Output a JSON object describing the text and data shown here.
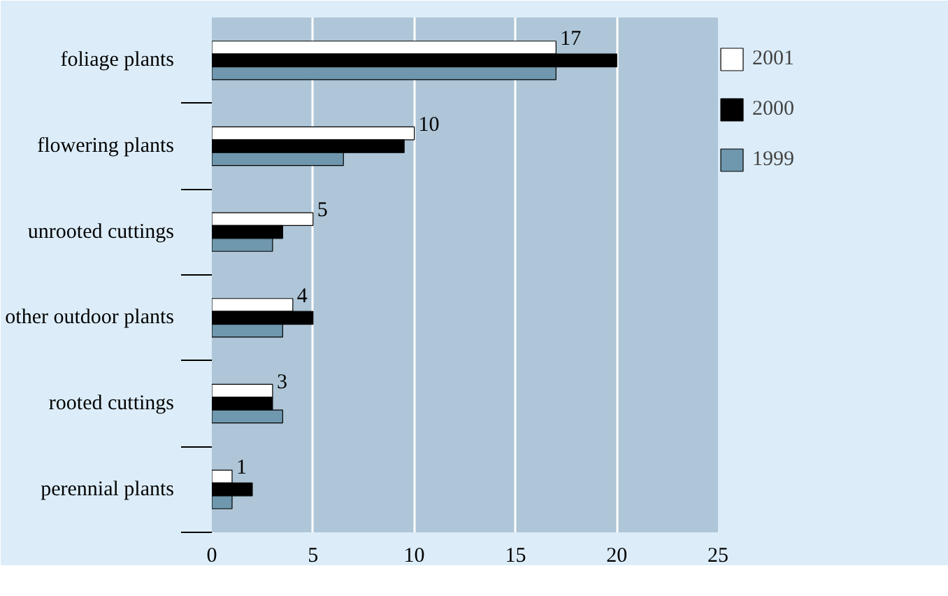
{
  "chart_data": {
    "type": "bar",
    "orientation": "horizontal",
    "categories": [
      "foliage plants",
      "flowering plants",
      "unrooted cuttings",
      "other outdoor plants",
      "rooted cuttings",
      "perennial plants"
    ],
    "series": [
      {
        "name": "2001",
        "color": "#ffffff",
        "values": [
          17,
          10,
          5,
          4,
          3,
          1
        ],
        "value_labels": [
          "17",
          "10",
          "5",
          "4",
          "3",
          "1"
        ]
      },
      {
        "name": "2000",
        "color": "#000000",
        "values": [
          20,
          9.5,
          3.5,
          5,
          3,
          2
        ]
      },
      {
        "name": "1999",
        "color": "#6f97ad",
        "values": [
          17,
          6.5,
          3,
          3.5,
          3.5,
          1
        ]
      }
    ],
    "xlim": [
      0,
      25
    ],
    "xticks": [
      0,
      5,
      10,
      15,
      20,
      25
    ],
    "grid": "x",
    "legend": "top right"
  }
}
